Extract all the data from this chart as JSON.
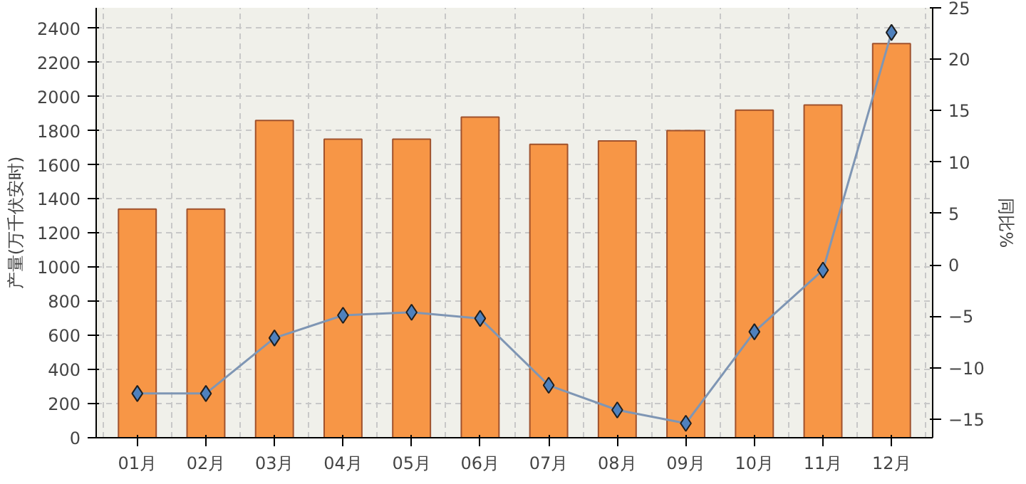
{
  "chart_data": {
    "type": "bar",
    "ylabel": "产量(万千伏安时)",
    "y2label": "同比%",
    "categories": [
      "01月",
      "02月",
      "03月",
      "04月",
      "05月",
      "06月",
      "07月",
      "08月",
      "09月",
      "10月",
      "11月",
      "12月"
    ],
    "series": [
      {
        "color": "#f79646",
        "values": [
          1340,
          1340,
          1860,
          1750,
          1750,
          1880,
          1720,
          1740,
          1800,
          1920,
          1950,
          2310
        ]
      },
      {
        "type": "line",
        "axis": "y2",
        "color": "#7f96b4",
        "marker": "diamond",
        "values": [
          -12.5,
          -12.5,
          -7.1,
          -4.9,
          -4.6,
          -5.2,
          -11.7,
          -14.1,
          -15.4,
          -6.5,
          -0.5,
          22.6
        ]
      }
    ],
    "ylim": [
      0,
      2520
    ],
    "yticks": [
      0,
      200,
      400,
      600,
      800,
      1000,
      1200,
      1400,
      1600,
      1800,
      2000,
      2200,
      2400
    ],
    "y2lim": [
      -16.8,
      25
    ],
    "y2ticks": [
      -15,
      -10,
      -5,
      0,
      5,
      10,
      15,
      20,
      25
    ],
    "grid": true
  }
}
